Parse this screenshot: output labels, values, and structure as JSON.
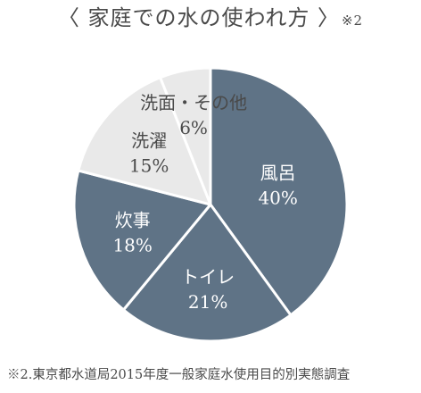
{
  "header": {
    "title": "〈 家庭での水の使われ方 〉",
    "note": "※2"
  },
  "footer": {
    "source": "※2.東京都水道局2015年度一般家庭水使用目的別実態調査"
  },
  "colors": {
    "dark": "#5f7386",
    "light": "#e9e9e9",
    "dark_text": "#ffffff",
    "light_text": "#4a4a4a",
    "stroke": "#ffffff"
  },
  "chart_data": {
    "type": "pie",
    "title": "〈 家庭での水の使われ方 〉",
    "start_angle_deg": 0,
    "direction": "clockwise",
    "slices": [
      {
        "label": "風呂",
        "value": 40,
        "value_label": "40%",
        "shade": "dark"
      },
      {
        "label": "トイレ",
        "value": 21,
        "value_label": "21%",
        "shade": "dark"
      },
      {
        "label": "炊事",
        "value": 18,
        "value_label": "18%",
        "shade": "dark"
      },
      {
        "label": "洗濯",
        "value": 15,
        "value_label": "15%",
        "shade": "light"
      },
      {
        "label": "洗面・その他",
        "value": 6,
        "value_label": "6%",
        "shade": "light"
      }
    ]
  }
}
